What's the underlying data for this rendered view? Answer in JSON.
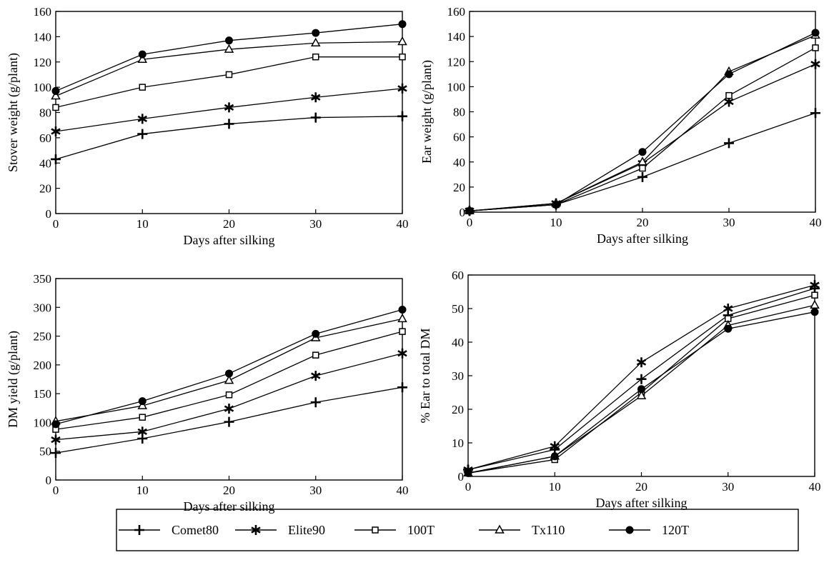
{
  "colors": {
    "ink": "#000000",
    "background": "#ffffff"
  },
  "legend": [
    {
      "name": "Comet80",
      "marker": "plus"
    },
    {
      "name": "Elite90",
      "marker": "star"
    },
    {
      "name": "100T",
      "marker": "open-square"
    },
    {
      "name": "Tx110",
      "marker": "open-triangle"
    },
    {
      "name": "120T",
      "marker": "filled-circle"
    }
  ],
  "chart_data": [
    {
      "type": "line",
      "title": "",
      "xlabel": "Days after silking",
      "ylabel": "Stover weight (g/plant)",
      "xlim": [
        0,
        40
      ],
      "ylim": [
        0,
        160
      ],
      "xticks": [
        0,
        10,
        20,
        30,
        40
      ],
      "yticks": [
        0,
        20,
        40,
        60,
        80,
        100,
        120,
        140,
        160
      ],
      "grid": false,
      "x": [
        0,
        10,
        20,
        30,
        40
      ],
      "series": [
        {
          "name": "Comet80",
          "values": [
            43,
            63,
            71,
            76,
            77
          ]
        },
        {
          "name": "Elite90",
          "values": [
            65,
            75,
            84,
            92,
            99
          ]
        },
        {
          "name": "100T",
          "values": [
            84,
            100,
            110,
            124,
            124
          ]
        },
        {
          "name": "Tx110",
          "values": [
            93,
            122,
            130,
            135,
            136
          ]
        },
        {
          "name": "120T",
          "values": [
            97,
            126,
            137,
            143,
            150
          ]
        }
      ]
    },
    {
      "type": "line",
      "title": "",
      "xlabel": "Days after silking",
      "ylabel": "Ear weight (g/plant)",
      "xlim": [
        0,
        40
      ],
      "ylim": [
        0,
        160
      ],
      "xticks": [
        0,
        10,
        20,
        30,
        40
      ],
      "yticks": [
        0,
        20,
        40,
        60,
        80,
        100,
        120,
        140,
        160
      ],
      "grid": false,
      "x": [
        0,
        10,
        20,
        30,
        40
      ],
      "series": [
        {
          "name": "Comet80",
          "values": [
            1,
            6,
            28,
            55,
            79
          ]
        },
        {
          "name": "Elite90",
          "values": [
            1,
            7,
            39,
            88,
            118
          ]
        },
        {
          "name": "100T",
          "values": [
            1,
            6,
            35,
            93,
            131
          ]
        },
        {
          "name": "Tx110",
          "values": [
            1,
            7,
            40,
            112,
            141
          ]
        },
        {
          "name": "120T",
          "values": [
            1,
            6,
            48,
            110,
            143
          ]
        }
      ]
    },
    {
      "type": "line",
      "title": "",
      "xlabel": "Days after silking",
      "ylabel": "DM yield (g/plant)",
      "xlim": [
        0,
        40
      ],
      "ylim": [
        0,
        350
      ],
      "xticks": [
        0,
        10,
        20,
        30,
        40
      ],
      "yticks": [
        0,
        50,
        100,
        150,
        200,
        250,
        300,
        350
      ],
      "grid": false,
      "x": [
        0,
        10,
        20,
        30,
        40
      ],
      "series": [
        {
          "name": "Comet80",
          "values": [
            47,
            72,
            101,
            135,
            161
          ]
        },
        {
          "name": "Elite90",
          "values": [
            70,
            84,
            124,
            181,
            220
          ]
        },
        {
          "name": "100T",
          "values": [
            88,
            109,
            148,
            217,
            258
          ]
        },
        {
          "name": "Tx110",
          "values": [
            102,
            129,
            173,
            247,
            280
          ]
        },
        {
          "name": "120T",
          "values": [
            97,
            137,
            185,
            254,
            296
          ]
        }
      ]
    },
    {
      "type": "line",
      "title": "",
      "xlabel": "Days after silking",
      "ylabel": "% Ear to total DM",
      "xlim": [
        0,
        40
      ],
      "ylim": [
        0,
        60
      ],
      "xticks": [
        0,
        10,
        20,
        30,
        40
      ],
      "yticks": [
        0,
        10,
        20,
        30,
        40,
        50,
        60
      ],
      "grid": false,
      "x": [
        0,
        10,
        20,
        30,
        40
      ],
      "series": [
        {
          "name": "Comet80",
          "values": [
            2,
            8,
            29,
            48,
            56
          ]
        },
        {
          "name": "Elite90",
          "values": [
            2,
            9,
            34,
            50,
            57
          ]
        },
        {
          "name": "100T",
          "values": [
            1,
            5,
            25,
            47,
            54
          ]
        },
        {
          "name": "Tx110",
          "values": [
            1,
            6,
            24,
            45,
            51
          ]
        },
        {
          "name": "120T",
          "values": [
            1,
            6,
            26,
            44,
            49
          ]
        }
      ]
    }
  ]
}
